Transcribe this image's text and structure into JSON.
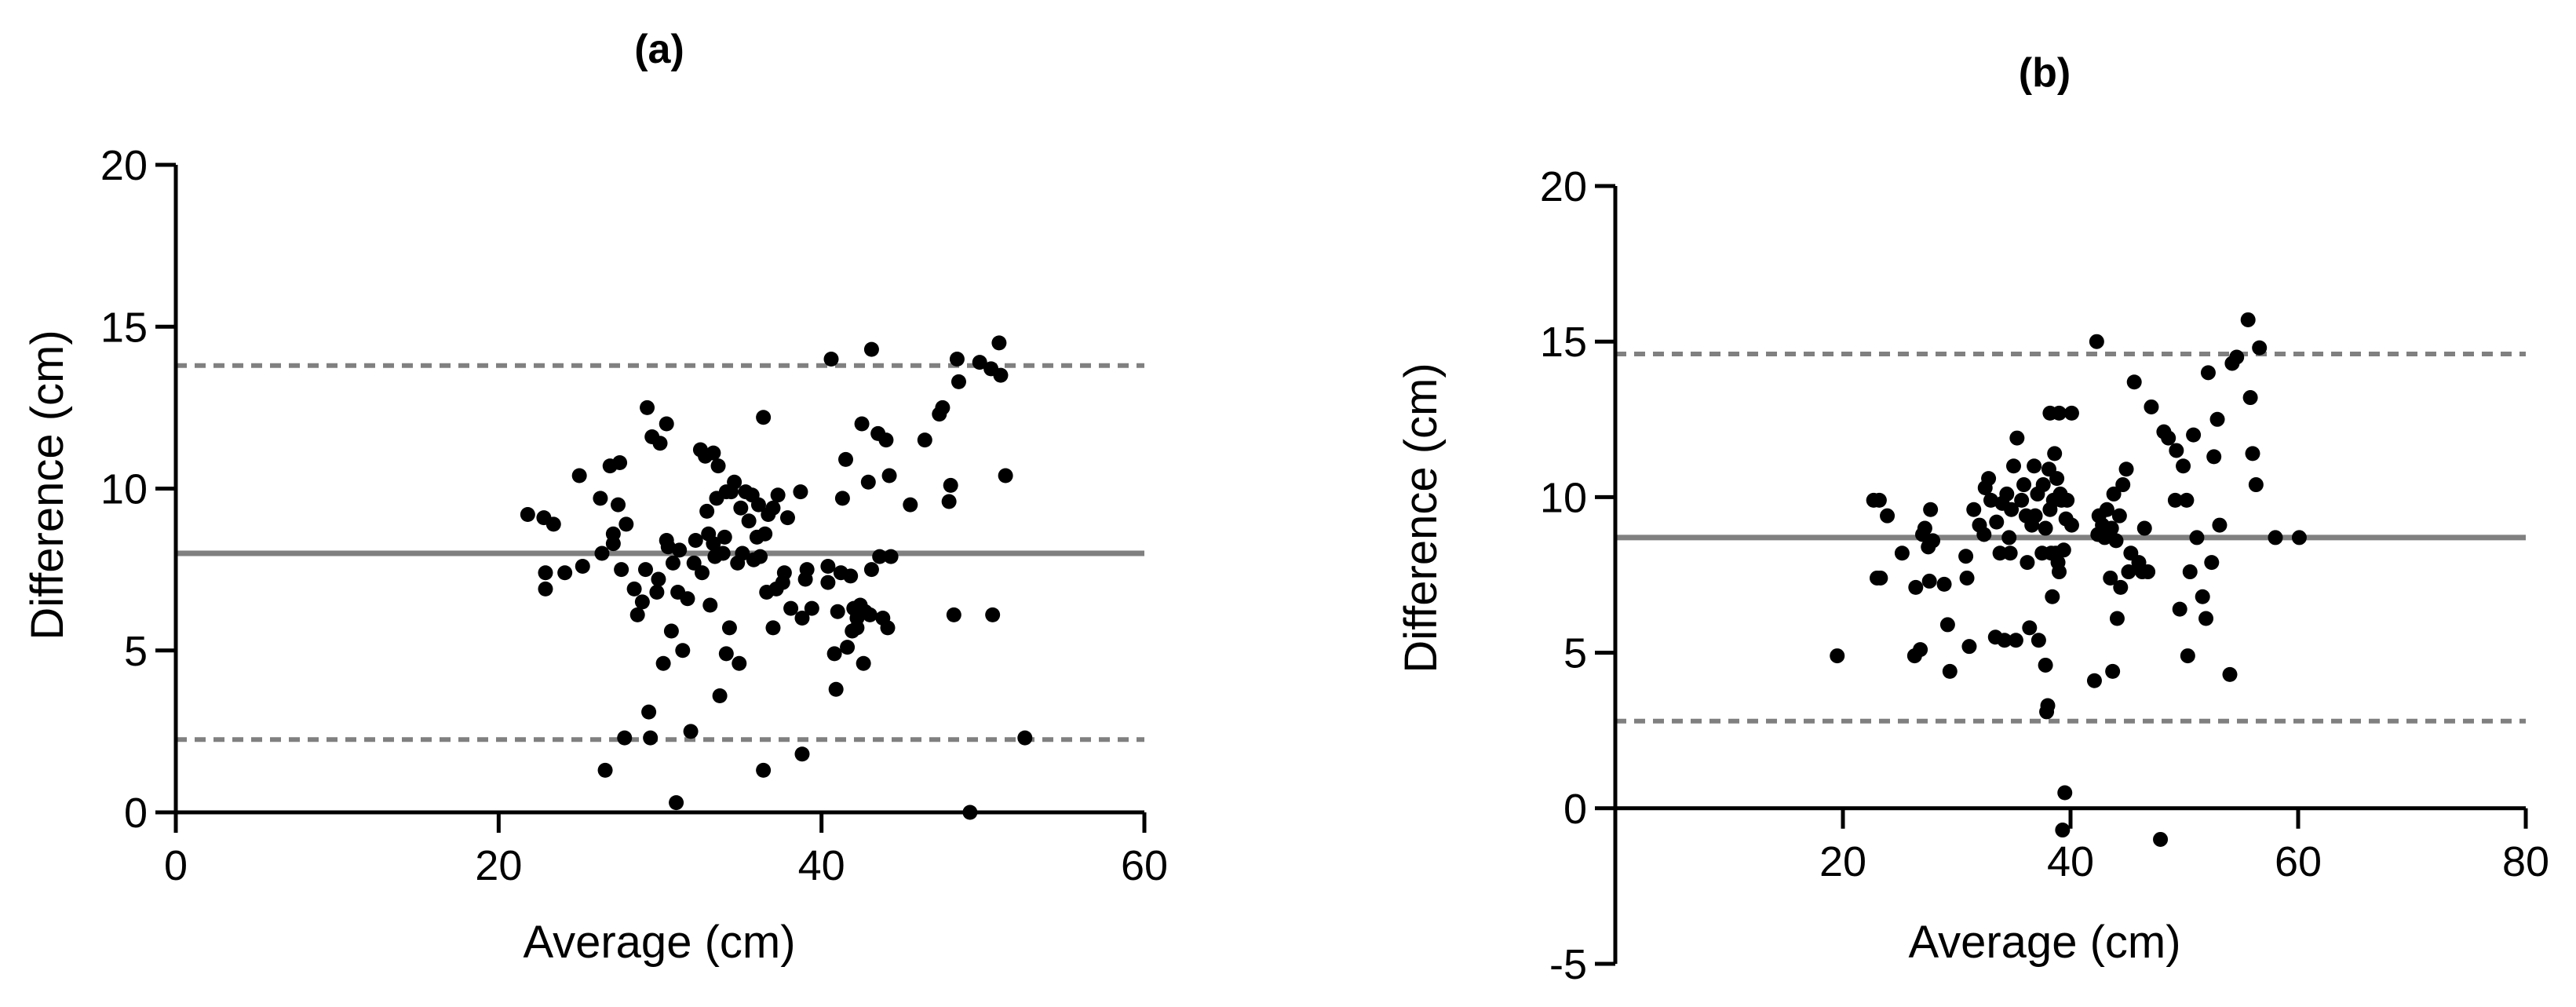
{
  "colors": {
    "points": "#000000",
    "axis": "#000000",
    "mean_line": "#808080",
    "limit_line": "#808080"
  },
  "chart_data": [
    {
      "type": "scatter",
      "title": "(a)",
      "xlabel": "Average (cm)",
      "ylabel": "Difference (cm)",
      "xlim": [
        0,
        60
      ],
      "ylim": [
        0,
        20
      ],
      "xticks": [
        0,
        20,
        40,
        60
      ],
      "yticks": [
        0,
        5,
        10,
        15,
        20
      ],
      "grid": false,
      "mean_difference": 8.0,
      "upper_limit": 13.8,
      "lower_limit": 2.25,
      "points": [
        [
          21.8,
          9.2
        ],
        [
          22.8,
          9.1
        ],
        [
          22.9,
          7.4
        ],
        [
          22.9,
          6.9
        ],
        [
          23.4,
          8.9
        ],
        [
          24.1,
          7.4
        ],
        [
          25.0,
          10.4
        ],
        [
          25.2,
          7.6
        ],
        [
          26.3,
          9.7
        ],
        [
          26.4,
          8.0
        ],
        [
          26.6,
          1.3
        ],
        [
          26.9,
          10.7
        ],
        [
          27.1,
          8.6
        ],
        [
          27.1,
          8.3
        ],
        [
          27.4,
          9.5
        ],
        [
          27.5,
          10.8
        ],
        [
          27.6,
          7.5
        ],
        [
          27.8,
          2.3
        ],
        [
          27.9,
          8.9
        ],
        [
          28.4,
          6.9
        ],
        [
          28.6,
          6.1
        ],
        [
          28.9,
          6.5
        ],
        [
          29.1,
          7.5
        ],
        [
          29.2,
          12.5
        ],
        [
          29.3,
          3.1
        ],
        [
          29.4,
          2.3
        ],
        [
          29.5,
          11.6
        ],
        [
          29.8,
          6.8
        ],
        [
          29.9,
          7.2
        ],
        [
          30.0,
          11.4
        ],
        [
          30.2,
          4.6
        ],
        [
          30.4,
          12.0
        ],
        [
          30.4,
          8.4
        ],
        [
          30.5,
          8.2
        ],
        [
          30.7,
          5.6
        ],
        [
          30.8,
          7.7
        ],
        [
          31.0,
          0.3
        ],
        [
          31.1,
          6.8
        ],
        [
          31.2,
          8.1
        ],
        [
          31.4,
          5.0
        ],
        [
          31.7,
          6.6
        ],
        [
          31.9,
          2.5
        ],
        [
          32.1,
          7.7
        ],
        [
          32.2,
          8.4
        ],
        [
          32.5,
          11.2
        ],
        [
          32.6,
          7.4
        ],
        [
          32.8,
          11.0
        ],
        [
          32.9,
          9.3
        ],
        [
          33.0,
          8.6
        ],
        [
          33.1,
          6.4
        ],
        [
          33.3,
          11.1
        ],
        [
          33.3,
          8.3
        ],
        [
          33.4,
          7.9
        ],
        [
          33.5,
          9.7
        ],
        [
          33.6,
          10.7
        ],
        [
          33.7,
          3.6
        ],
        [
          33.9,
          8.0
        ],
        [
          34.0,
          8.5
        ],
        [
          34.1,
          9.9
        ],
        [
          34.1,
          4.9
        ],
        [
          34.3,
          5.7
        ],
        [
          34.4,
          9.9
        ],
        [
          34.6,
          10.2
        ],
        [
          34.8,
          7.7
        ],
        [
          34.9,
          4.6
        ],
        [
          35.0,
          9.4
        ],
        [
          35.1,
          8.0
        ],
        [
          35.3,
          9.9
        ],
        [
          35.5,
          9.0
        ],
        [
          35.7,
          9.8
        ],
        [
          35.8,
          7.8
        ],
        [
          36.0,
          8.5
        ],
        [
          36.1,
          9.5
        ],
        [
          36.2,
          7.9
        ],
        [
          36.4,
          12.2
        ],
        [
          36.4,
          1.3
        ],
        [
          36.5,
          8.6
        ],
        [
          36.6,
          6.8
        ],
        [
          36.7,
          9.2
        ],
        [
          37.0,
          5.7
        ],
        [
          37.0,
          9.4
        ],
        [
          37.2,
          6.9
        ],
        [
          37.3,
          9.8
        ],
        [
          37.6,
          7.1
        ],
        [
          37.7,
          7.4
        ],
        [
          37.9,
          9.1
        ],
        [
          38.1,
          6.3
        ],
        [
          38.7,
          9.9
        ],
        [
          38.8,
          1.8
        ],
        [
          38.8,
          6.0
        ],
        [
          39.0,
          7.2
        ],
        [
          39.1,
          7.5
        ],
        [
          39.4,
          6.3
        ],
        [
          40.4,
          7.6
        ],
        [
          40.4,
          7.1
        ],
        [
          40.6,
          14.0
        ],
        [
          40.8,
          4.9
        ],
        [
          40.9,
          3.8
        ],
        [
          41.0,
          6.2
        ],
        [
          41.2,
          7.4
        ],
        [
          41.3,
          9.7
        ],
        [
          41.5,
          10.9
        ],
        [
          41.6,
          5.1
        ],
        [
          41.8,
          7.3
        ],
        [
          41.9,
          5.6
        ],
        [
          42.0,
          6.3
        ],
        [
          42.2,
          6.0
        ],
        [
          42.2,
          5.7
        ],
        [
          42.4,
          6.4
        ],
        [
          42.5,
          12.0
        ],
        [
          42.6,
          4.6
        ],
        [
          42.7,
          6.2
        ],
        [
          42.9,
          10.2
        ],
        [
          43.0,
          6.1
        ],
        [
          43.1,
          14.3
        ],
        [
          43.1,
          7.5
        ],
        [
          43.5,
          11.7
        ],
        [
          43.6,
          7.9
        ],
        [
          43.8,
          6.0
        ],
        [
          44.0,
          11.5
        ],
        [
          44.1,
          5.7
        ],
        [
          44.2,
          10.4
        ],
        [
          44.3,
          7.9
        ],
        [
          45.5,
          9.5
        ],
        [
          46.4,
          11.5
        ],
        [
          47.3,
          12.3
        ],
        [
          47.5,
          12.5
        ],
        [
          47.9,
          9.6
        ],
        [
          48.0,
          10.1
        ],
        [
          48.2,
          6.1
        ],
        [
          48.4,
          14.0
        ],
        [
          48.5,
          13.3
        ],
        [
          49.2,
          0.0
        ],
        [
          49.8,
          13.9
        ],
        [
          50.5,
          13.7
        ],
        [
          50.6,
          6.1
        ],
        [
          51.0,
          14.5
        ],
        [
          51.1,
          13.5
        ],
        [
          51.4,
          10.4
        ],
        [
          52.6,
          2.3
        ]
      ]
    },
    {
      "type": "scatter",
      "title": "(b)",
      "xlabel": "Average (cm)",
      "ylabel": "Difference (cm)",
      "xlim": [
        0,
        80
      ],
      "ylim": [
        -5,
        20
      ],
      "xticks": [
        20,
        40,
        60,
        80
      ],
      "yticks": [
        -5,
        0,
        5,
        10,
        15,
        20
      ],
      "grid": false,
      "mean_difference": 8.7,
      "upper_limit": 14.6,
      "lower_limit": 2.8,
      "points": [
        [
          19.5,
          4.9
        ],
        [
          22.7,
          9.9
        ],
        [
          23.0,
          7.4
        ],
        [
          23.2,
          9.9
        ],
        [
          23.3,
          7.4
        ],
        [
          23.9,
          9.4
        ],
        [
          25.2,
          8.2
        ],
        [
          26.3,
          4.9
        ],
        [
          26.4,
          7.1
        ],
        [
          26.8,
          5.1
        ],
        [
          27.0,
          8.8
        ],
        [
          27.2,
          9.0
        ],
        [
          27.5,
          8.4
        ],
        [
          27.6,
          7.3
        ],
        [
          27.7,
          9.6
        ],
        [
          27.9,
          8.6
        ],
        [
          28.9,
          7.2
        ],
        [
          29.2,
          5.9
        ],
        [
          29.4,
          4.4
        ],
        [
          30.8,
          8.1
        ],
        [
          30.9,
          7.4
        ],
        [
          31.1,
          5.2
        ],
        [
          31.5,
          9.6
        ],
        [
          32.0,
          9.1
        ],
        [
          32.4,
          8.8
        ],
        [
          32.5,
          10.3
        ],
        [
          32.8,
          10.6
        ],
        [
          33.0,
          9.9
        ],
        [
          33.4,
          5.5
        ],
        [
          33.5,
          9.2
        ],
        [
          33.8,
          8.2
        ],
        [
          34.0,
          9.8
        ],
        [
          34.2,
          5.4
        ],
        [
          34.4,
          10.1
        ],
        [
          34.6,
          8.7
        ],
        [
          34.7,
          8.2
        ],
        [
          34.8,
          9.6
        ],
        [
          35.0,
          11.0
        ],
        [
          35.2,
          5.4
        ],
        [
          35.3,
          11.9
        ],
        [
          35.7,
          9.9
        ],
        [
          35.9,
          10.4
        ],
        [
          36.1,
          9.4
        ],
        [
          36.2,
          7.9
        ],
        [
          36.4,
          5.8
        ],
        [
          36.6,
          9.1
        ],
        [
          36.8,
          11.0
        ],
        [
          36.9,
          9.4
        ],
        [
          37.1,
          10.1
        ],
        [
          37.2,
          5.4
        ],
        [
          37.5,
          8.2
        ],
        [
          37.6,
          10.4
        ],
        [
          37.8,
          4.6
        ],
        [
          37.8,
          9.0
        ],
        [
          37.9,
          3.1
        ],
        [
          38.0,
          3.3
        ],
        [
          38.1,
          10.9
        ],
        [
          38.2,
          12.7
        ],
        [
          38.2,
          9.6
        ],
        [
          38.3,
          8.2
        ],
        [
          38.4,
          6.8
        ],
        [
          38.5,
          9.9
        ],
        [
          38.6,
          11.4
        ],
        [
          38.7,
          8.2
        ],
        [
          38.8,
          10.6
        ],
        [
          38.9,
          7.9
        ],
        [
          39.0,
          12.7
        ],
        [
          39.0,
          7.6
        ],
        [
          39.1,
          10.1
        ],
        [
          39.2,
          9.9
        ],
        [
          39.3,
          -0.7
        ],
        [
          39.4,
          8.3
        ],
        [
          39.5,
          0.5
        ],
        [
          39.6,
          9.3
        ],
        [
          39.7,
          9.9
        ],
        [
          40.1,
          12.7
        ],
        [
          40.1,
          9.1
        ],
        [
          42.1,
          4.1
        ],
        [
          42.3,
          15.0
        ],
        [
          42.4,
          8.8
        ],
        [
          42.5,
          9.4
        ],
        [
          42.8,
          9.1
        ],
        [
          43.0,
          8.7
        ],
        [
          43.2,
          9.6
        ],
        [
          43.5,
          7.4
        ],
        [
          43.6,
          9.0
        ],
        [
          43.7,
          4.4
        ],
        [
          43.8,
          10.1
        ],
        [
          44.0,
          8.6
        ],
        [
          44.1,
          6.1
        ],
        [
          44.3,
          9.4
        ],
        [
          44.4,
          7.1
        ],
        [
          44.6,
          10.4
        ],
        [
          44.9,
          10.9
        ],
        [
          45.1,
          7.6
        ],
        [
          45.3,
          8.2
        ],
        [
          45.6,
          13.7
        ],
        [
          46.0,
          7.9
        ],
        [
          46.3,
          7.6
        ],
        [
          46.5,
          9.0
        ],
        [
          46.8,
          7.6
        ],
        [
          47.1,
          12.9
        ],
        [
          47.9,
          -1.0
        ],
        [
          48.2,
          12.1
        ],
        [
          48.6,
          11.9
        ],
        [
          49.2,
          9.9
        ],
        [
          49.3,
          11.5
        ],
        [
          49.6,
          6.4
        ],
        [
          49.9,
          11.0
        ],
        [
          50.2,
          9.9
        ],
        [
          50.3,
          4.9
        ],
        [
          50.5,
          7.6
        ],
        [
          50.8,
          12.0
        ],
        [
          51.1,
          8.7
        ],
        [
          51.6,
          6.8
        ],
        [
          51.9,
          6.1
        ],
        [
          52.1,
          14.0
        ],
        [
          52.4,
          7.9
        ],
        [
          52.6,
          11.3
        ],
        [
          52.9,
          12.5
        ],
        [
          53.1,
          9.1
        ],
        [
          54.0,
          4.3
        ],
        [
          54.2,
          14.3
        ],
        [
          54.6,
          14.5
        ],
        [
          55.6,
          15.7
        ],
        [
          55.8,
          13.2
        ],
        [
          56.0,
          11.4
        ],
        [
          56.3,
          10.4
        ],
        [
          56.6,
          14.8
        ],
        [
          58.0,
          8.7
        ],
        [
          60.1,
          8.7
        ]
      ]
    }
  ]
}
